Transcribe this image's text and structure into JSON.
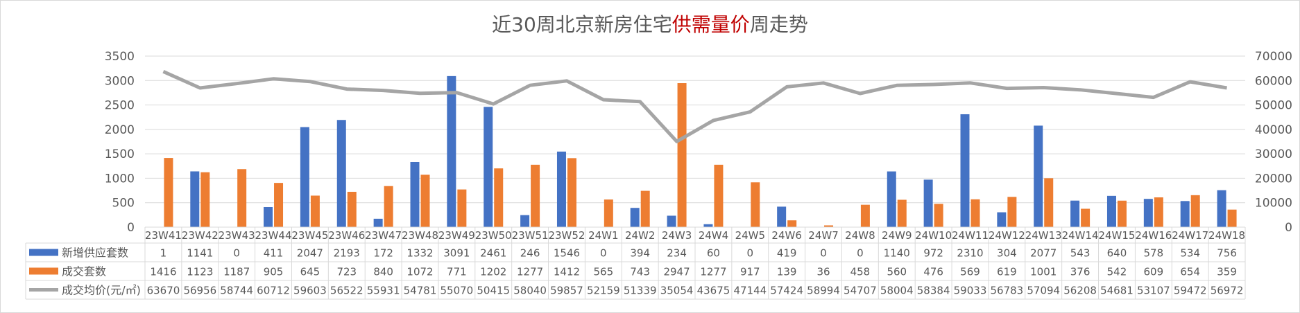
{
  "title": {
    "part1": "近30周北京新房住宅",
    "highlight": "供需量价",
    "part2": "周走势",
    "highlight_color": "#c00000"
  },
  "chart_data": {
    "type": "bar",
    "categories": [
      "23W41",
      "23W42",
      "23W43",
      "23W44",
      "23W45",
      "23W46",
      "23W47",
      "23W48",
      "23W49",
      "23W50",
      "23W51",
      "23W52",
      "24W1",
      "24W2",
      "24W3",
      "24W4",
      "24W5",
      "24W6",
      "24W7",
      "24W8",
      "24W9",
      "24W10",
      "24W11",
      "24W12",
      "24W13",
      "24W14",
      "24W15",
      "24W16",
      "24W17",
      "24W18"
    ],
    "series": [
      {
        "name": "新增供应套数",
        "type": "bar",
        "axis": "left",
        "color": "#4472c4",
        "values": [
          1,
          1141,
          0,
          411,
          2047,
          2193,
          172,
          1332,
          3091,
          2461,
          246,
          1546,
          0,
          394,
          234,
          60,
          0,
          419,
          0,
          0,
          1140,
          972,
          2310,
          304,
          2077,
          543,
          640,
          578,
          534,
          756
        ]
      },
      {
        "name": "成交套数",
        "type": "bar",
        "axis": "left",
        "color": "#ed7d31",
        "values": [
          1416,
          1123,
          1187,
          905,
          645,
          723,
          840,
          1072,
          771,
          1202,
          1277,
          1412,
          565,
          743,
          2947,
          1277,
          917,
          139,
          36,
          458,
          560,
          476,
          569,
          619,
          1001,
          376,
          542,
          609,
          654,
          359
        ]
      },
      {
        "name": "成交均价(元/㎡)",
        "type": "line",
        "axis": "right",
        "color": "#a5a5a5",
        "values": [
          63670,
          56956,
          58744,
          60712,
          59603,
          56522,
          55931,
          54781,
          55070,
          50415,
          58040,
          59857,
          52159,
          51339,
          35054,
          43675,
          47144,
          57424,
          58994,
          54707,
          58004,
          58384,
          59033,
          56783,
          57094,
          56208,
          54681,
          53107,
          59472,
          56972
        ]
      }
    ],
    "y_left": {
      "min": 0,
      "max": 3500,
      "ticks": [
        "0",
        "500",
        "1000",
        "1500",
        "2000",
        "2500",
        "3000",
        "3500"
      ]
    },
    "y_right": {
      "min": 0,
      "max": 70000,
      "ticks": [
        "0",
        "10000",
        "20000",
        "30000",
        "40000",
        "50000",
        "60000",
        "70000"
      ]
    },
    "grid": true,
    "legend": "data-table-left"
  }
}
